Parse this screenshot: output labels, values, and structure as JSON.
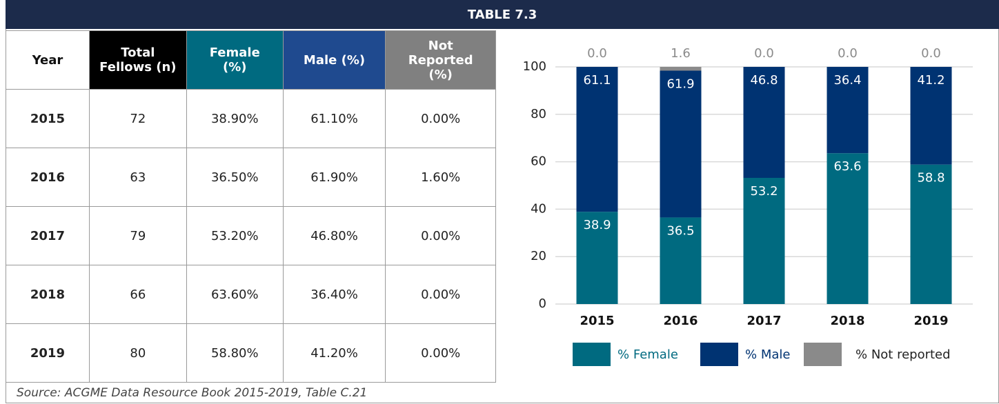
{
  "title": "TABLE 7.3",
  "table": {
    "header": [
      "Year",
      "Total Fellows (n)",
      "Female (%)",
      "Male (%)",
      "Not Reported (%)"
    ],
    "rows": [
      [
        "2015",
        72,
        "38.90%",
        "61.10%",
        "0.00%"
      ],
      [
        "2016",
        63,
        "36.50%",
        "61.90%",
        "1.60%"
      ],
      [
        "2017",
        79,
        "53.20%",
        "46.80%",
        "0.00%"
      ],
      [
        "2018",
        66,
        "63.60%",
        "36.40%",
        "0.00%"
      ],
      [
        "2019",
        80,
        "58.80%",
        "41.20%",
        "0.00%"
      ]
    ]
  },
  "source": "Source: ACGME Data Resource Book 2015-2019, Table C.21",
  "chart_data": {
    "type": "stacked_bar",
    "categories": [
      "2015",
      "2016",
      "2017",
      "2018",
      "2019"
    ],
    "series": [
      {
        "name": "% Female",
        "color": "#006a80",
        "values": [
          38.9,
          36.5,
          53.2,
          63.6,
          58.8
        ]
      },
      {
        "name": "% Male",
        "color": "#003372",
        "values": [
          61.1,
          61.9,
          46.8,
          36.4,
          41.2
        ]
      },
      {
        "name": "% Not reported",
        "color": "#8a8a8a",
        "values": [
          0,
          1.6,
          0,
          0,
          0
        ],
        "value_labels": [
          "0.0",
          "1.6",
          "0.0",
          "0.0",
          "0.0"
        ]
      }
    ],
    "ylim": [
      0,
      100
    ],
    "yticks": [
      0,
      20,
      40,
      60,
      80,
      100
    ],
    "grid": true,
    "legend": "bottom"
  }
}
